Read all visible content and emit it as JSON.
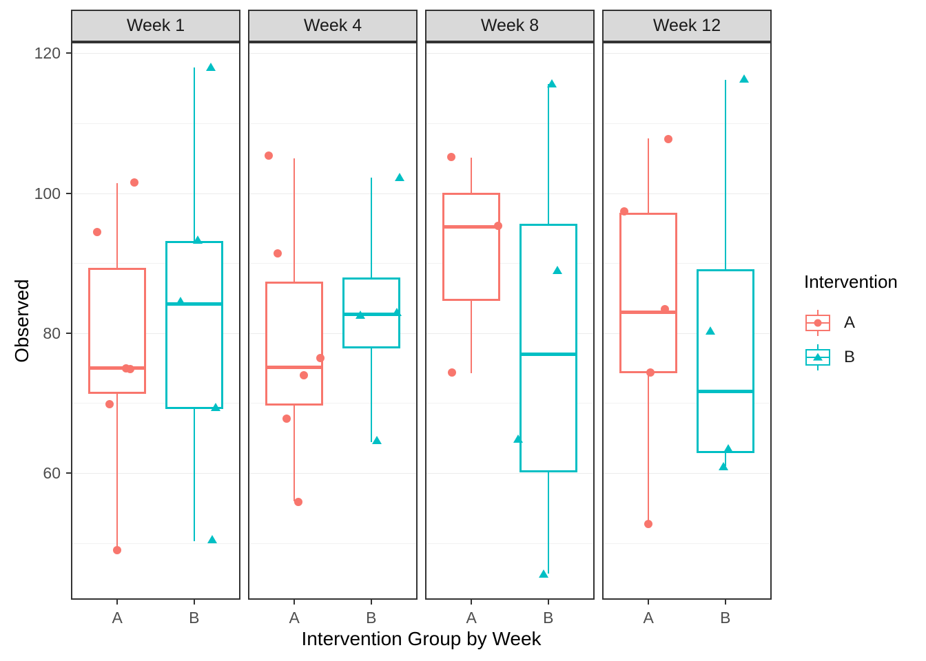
{
  "chart_data": {
    "type": "boxplot",
    "overlay": "jittered points",
    "title": "",
    "xlabel": "Intervention Group by Week",
    "ylabel": "Observed",
    "facets": [
      "Week 1",
      "Week 4",
      "Week 8",
      "Week 12"
    ],
    "groups": [
      "A",
      "B"
    ],
    "ylim": [
      41.9,
      121.6
    ],
    "y_major_ticks": [
      60,
      80,
      100,
      120
    ],
    "y_minor_ticks": [
      50,
      70,
      90,
      110
    ],
    "grid": true,
    "legend": {
      "title": "Intervention",
      "position": "right",
      "entries": [
        {
          "label": "A",
          "marker": "circle",
          "color": "#F8766D"
        },
        {
          "label": "B",
          "marker": "triangle",
          "color": "#00BFC4"
        }
      ]
    },
    "colors": {
      "A": "#F8766D",
      "B": "#00BFC4",
      "strip_bg": "#D9D9D9",
      "panel_border": "#333333",
      "grid_major": "#EBEBEB",
      "grid_minor": "#F2F2F2",
      "axis_text": "#4D4D4D",
      "tick": "#333333"
    },
    "boxes": [
      {
        "facet": "Week 1",
        "group": "A",
        "min": 49.0,
        "q1": 71.3,
        "median": 75.0,
        "q3": 89.3,
        "max": 101.4
      },
      {
        "facet": "Week 1",
        "group": "B",
        "min": 50.3,
        "q1": 69.2,
        "median": 84.2,
        "q3": 93.2,
        "max": 118.0
      },
      {
        "facet": "Week 4",
        "group": "A",
        "min": 56.0,
        "q1": 69.6,
        "median": 75.1,
        "q3": 87.4,
        "max": 105.0
      },
      {
        "facet": "Week 4",
        "group": "B",
        "min": 64.4,
        "q1": 77.8,
        "median": 82.7,
        "q3": 87.9,
        "max": 102.2
      },
      {
        "facet": "Week 8",
        "group": "A",
        "min": 74.3,
        "q1": 84.6,
        "median": 95.2,
        "q3": 100.1,
        "max": 105.1
      },
      {
        "facet": "Week 8",
        "group": "B",
        "min": 45.6,
        "q1": 60.1,
        "median": 77.0,
        "q3": 95.6,
        "max": 115.6
      },
      {
        "facet": "Week 12",
        "group": "A",
        "min": 52.8,
        "q1": 74.3,
        "median": 83.0,
        "q3": 97.2,
        "max": 107.8
      },
      {
        "facet": "Week 12",
        "group": "B",
        "min": 61.0,
        "q1": 62.9,
        "median": 71.7,
        "q3": 89.1,
        "max": 116.2
      }
    ],
    "points": [
      {
        "facet": "Week 1",
        "group": "A",
        "value": 101.5,
        "jitter": 0.1
      },
      {
        "facet": "Week 1",
        "group": "A",
        "value": 94.4,
        "jitter": -0.12
      },
      {
        "facet": "Week 1",
        "group": "A",
        "value": 75.0,
        "jitter": 0.054
      },
      {
        "facet": "Week 1",
        "group": "A",
        "value": 74.9,
        "jitter": 0.078
      },
      {
        "facet": "Week 1",
        "group": "A",
        "value": 69.8,
        "jitter": -0.045
      },
      {
        "facet": "Week 1",
        "group": "A",
        "value": 49.0,
        "jitter": 0.0
      },
      {
        "facet": "Week 1",
        "group": "B",
        "value": 118.0,
        "jitter": 0.097
      },
      {
        "facet": "Week 1",
        "group": "B",
        "value": 93.3,
        "jitter": 0.02
      },
      {
        "facet": "Week 1",
        "group": "B",
        "value": 84.5,
        "jitter": -0.081
      },
      {
        "facet": "Week 1",
        "group": "B",
        "value": 69.4,
        "jitter": 0.125
      },
      {
        "facet": "Week 1",
        "group": "B",
        "value": 50.5,
        "jitter": 0.105
      },
      {
        "facet": "Week 4",
        "group": "A",
        "value": 105.4,
        "jitter": -0.152
      },
      {
        "facet": "Week 4",
        "group": "A",
        "value": 91.4,
        "jitter": -0.1
      },
      {
        "facet": "Week 4",
        "group": "A",
        "value": 76.4,
        "jitter": 0.152
      },
      {
        "facet": "Week 4",
        "group": "A",
        "value": 74.0,
        "jitter": 0.056
      },
      {
        "facet": "Week 4",
        "group": "A",
        "value": 67.8,
        "jitter": -0.044
      },
      {
        "facet": "Week 4",
        "group": "A",
        "value": 55.9,
        "jitter": 0.024
      },
      {
        "facet": "Week 4",
        "group": "B",
        "value": 102.2,
        "jitter": 0.168
      },
      {
        "facet": "Week 4",
        "group": "B",
        "value": 82.9,
        "jitter": 0.152
      },
      {
        "facet": "Week 4",
        "group": "B",
        "value": 82.5,
        "jitter": -0.064
      },
      {
        "facet": "Week 4",
        "group": "B",
        "value": 64.6,
        "jitter": 0.032
      },
      {
        "facet": "Week 8",
        "group": "A",
        "value": 105.2,
        "jitter": -0.12
      },
      {
        "facet": "Week 8",
        "group": "A",
        "value": 95.3,
        "jitter": 0.156
      },
      {
        "facet": "Week 8",
        "group": "A",
        "value": 74.4,
        "jitter": -0.116
      },
      {
        "facet": "Week 8",
        "group": "B",
        "value": 115.6,
        "jitter": 0.02
      },
      {
        "facet": "Week 8",
        "group": "B",
        "value": 88.9,
        "jitter": 0.052
      },
      {
        "facet": "Week 8",
        "group": "B",
        "value": 64.8,
        "jitter": -0.18
      },
      {
        "facet": "Week 8",
        "group": "B",
        "value": 45.5,
        "jitter": -0.028
      },
      {
        "facet": "Week 12",
        "group": "A",
        "value": 107.7,
        "jitter": 0.116
      },
      {
        "facet": "Week 12",
        "group": "A",
        "value": 97.4,
        "jitter": -0.144
      },
      {
        "facet": "Week 12",
        "group": "A",
        "value": 83.4,
        "jitter": 0.096
      },
      {
        "facet": "Week 12",
        "group": "A",
        "value": 74.4,
        "jitter": 0.012
      },
      {
        "facet": "Week 12",
        "group": "A",
        "value": 52.7,
        "jitter": 0.0
      },
      {
        "facet": "Week 12",
        "group": "B",
        "value": 116.3,
        "jitter": 0.112
      },
      {
        "facet": "Week 12",
        "group": "B",
        "value": 80.3,
        "jitter": -0.088
      },
      {
        "facet": "Week 12",
        "group": "B",
        "value": 63.4,
        "jitter": 0.016
      },
      {
        "facet": "Week 12",
        "group": "B",
        "value": 60.9,
        "jitter": -0.012
      }
    ]
  }
}
